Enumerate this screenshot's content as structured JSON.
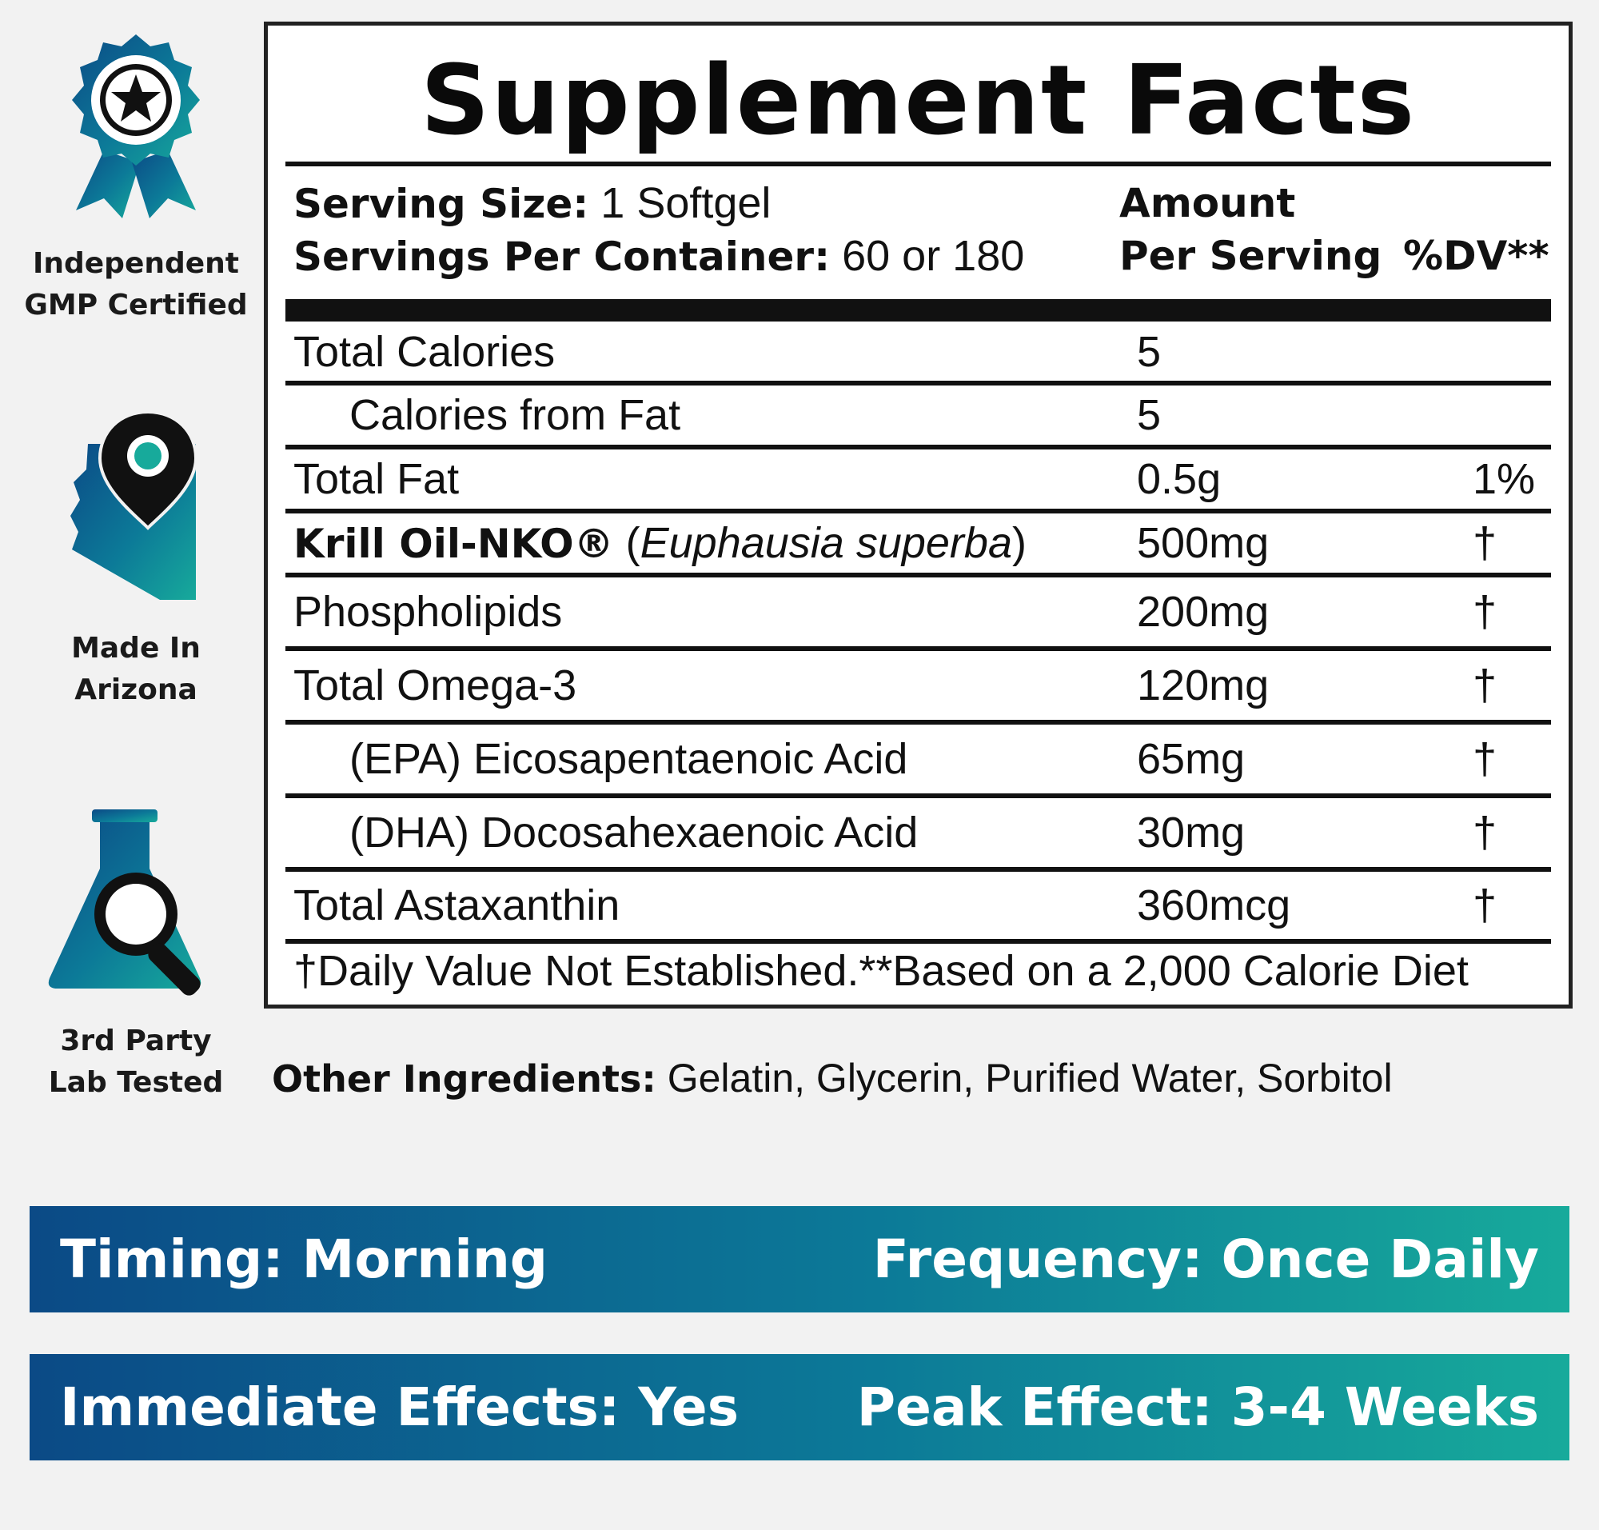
{
  "colors": {
    "gradient_start": "#0b4a86",
    "gradient_mid": "#0c7a98",
    "gradient_end": "#17aa9b",
    "background": "#f2f2f2"
  },
  "badges": [
    {
      "icon": "award-ribbon-star-icon",
      "label": "Independent\nGMP Certified"
    },
    {
      "icon": "arizona-map-pin-icon",
      "label": "Made In\nArizona"
    },
    {
      "icon": "lab-flask-magnifier-icon",
      "label": "3rd Party\nLab Tested"
    }
  ],
  "facts": {
    "title": "Supplement Facts",
    "serving_size_label": "Serving Size:",
    "serving_size_value": "1 Softgel",
    "servings_label": "Servings Per Container:",
    "servings_value": "60 or 180",
    "amount_header_1": "Amount",
    "amount_header_2": "Per Serving",
    "dv_header": "%DV**",
    "rows": [
      {
        "name": "Total Calories",
        "amount": "5",
        "dv": ""
      },
      {
        "name": "Calories from Fat",
        "amount": "5",
        "dv": ""
      },
      {
        "name": "Total Fat",
        "amount": "0.5g",
        "dv": "1%"
      },
      {
        "name_bold": "Krill Oil-NKO®",
        "name_paren_open": " (",
        "name_italic": "Euphausia superba",
        "name_paren_close": ")",
        "amount": "500mg",
        "dv": "†"
      },
      {
        "name": "Phospholipids",
        "amount": "200mg",
        "dv": "†"
      },
      {
        "name": "Total Omega-3",
        "amount": "120mg",
        "dv": "†"
      },
      {
        "name": "(EPA) Eicosapentaenoic Acid",
        "amount": "65mg",
        "dv": "†"
      },
      {
        "name": "(DHA) Docosahexaenoic Acid",
        "amount": "30mg",
        "dv": "†"
      },
      {
        "name": "Total Astaxanthin",
        "amount": "360mcg",
        "dv": "†"
      }
    ],
    "footnote": "†Daily Value Not Established.**Based on a 2,000 Calorie Diet"
  },
  "other_ingredients": {
    "label": "Other Ingredients:",
    "value": " Gelatin, Glycerin, Purified Water, Sorbitol"
  },
  "info_bars": [
    {
      "left": "Timing: Morning",
      "right": "Frequency: Once Daily"
    },
    {
      "left": "Immediate Effects: Yes",
      "right": "Peak Effect: 3-4 Weeks"
    }
  ]
}
